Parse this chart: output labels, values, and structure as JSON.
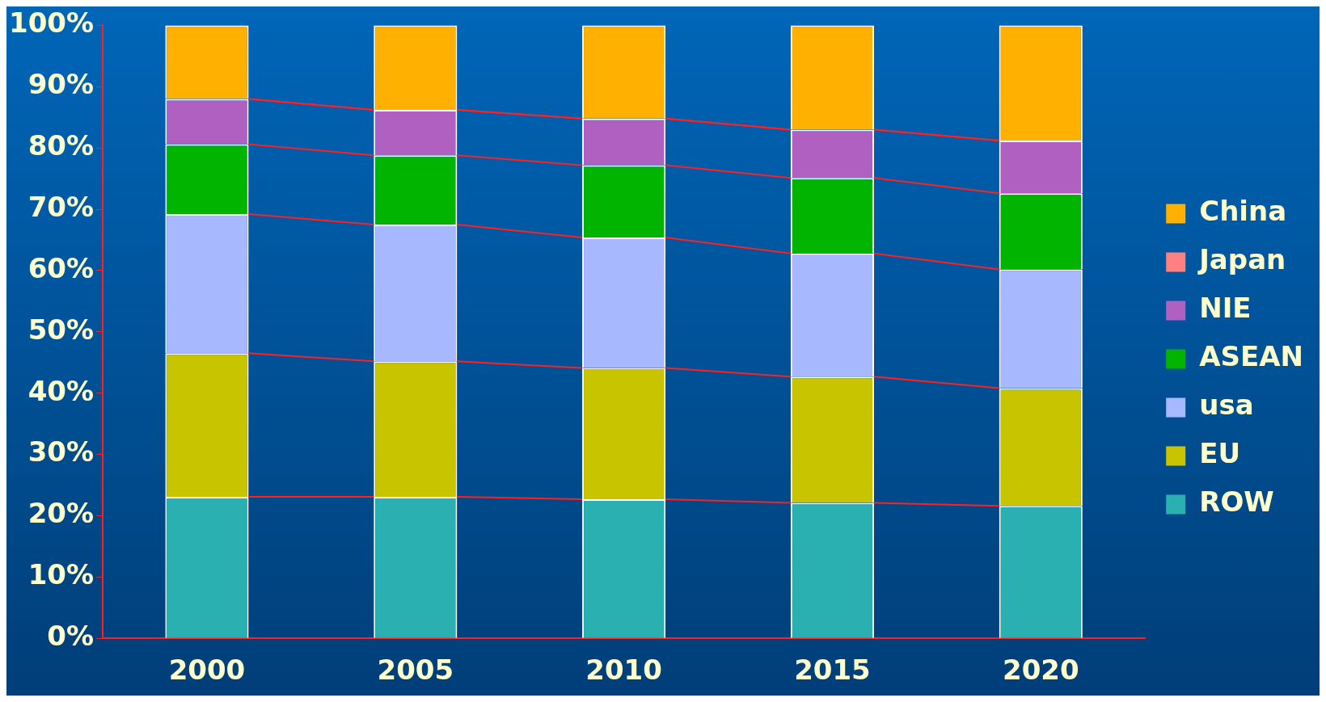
{
  "chart_data": {
    "type": "bar",
    "stacked": true,
    "categories": [
      "2000",
      "2005",
      "2010",
      "2015",
      "2020"
    ],
    "series": [
      {
        "name": "ROW",
        "color": "#2ab0b0",
        "values": [
          23.1,
          23.1,
          22.7,
          22.1,
          21.6
        ]
      },
      {
        "name": "EU",
        "color": "#c8c400",
        "values": [
          23.4,
          22.1,
          21.4,
          20.6,
          19.2
        ]
      },
      {
        "name": "usa",
        "color": "#a8b8ff",
        "values": [
          22.7,
          22.3,
          21.3,
          20.1,
          19.4
        ]
      },
      {
        "name": "ASEAN",
        "color": "#00b400",
        "values": [
          11.4,
          11.3,
          11.8,
          12.3,
          12.4
        ]
      },
      {
        "name": "NIE",
        "color": "#b060c0",
        "values": [
          7.4,
          7.4,
          7.6,
          7.9,
          8.6
        ]
      },
      {
        "name": "Japan",
        "color": "#ff8080",
        "values": [
          0,
          0,
          0,
          0,
          0
        ]
      },
      {
        "name": "China",
        "color": "#ffb000",
        "values": [
          12.0,
          13.8,
          15.2,
          17.0,
          18.8
        ]
      }
    ],
    "ylim": [
      0,
      100
    ],
    "yticks": [
      {
        "value": 0,
        "label": "0%"
      },
      {
        "value": 10,
        "label": "10%"
      },
      {
        "value": 20,
        "label": "20%"
      },
      {
        "value": 30,
        "label": "30%"
      },
      {
        "value": 40,
        "label": "40%"
      },
      {
        "value": 50,
        "label": "50%"
      },
      {
        "value": 60,
        "label": "60%"
      },
      {
        "value": 70,
        "label": "70%"
      },
      {
        "value": 80,
        "label": "80%"
      },
      {
        "value": 90,
        "label": "90%"
      },
      {
        "value": 100,
        "label": "100%"
      }
    ],
    "grid": false,
    "legend": "right"
  }
}
